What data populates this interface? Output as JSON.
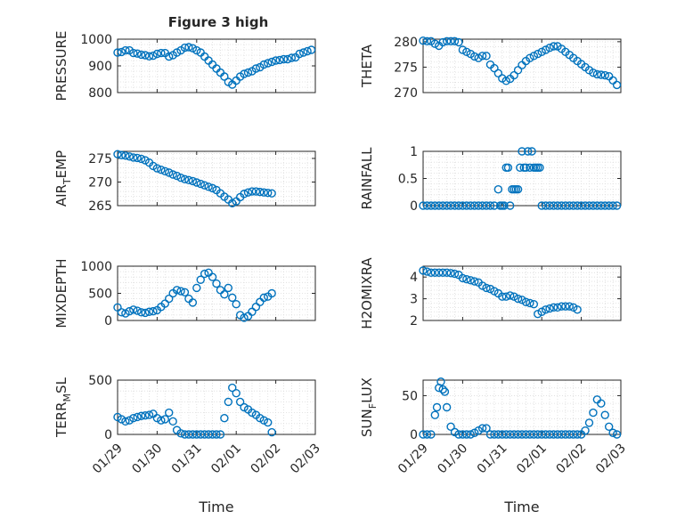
{
  "figure_title": "Figure 3 high",
  "colors": {
    "marker": "#0072BD",
    "grid": "#dcdcdc",
    "axis": "#262626"
  },
  "chart_data": [
    {
      "type": "scatter",
      "title": "Figure 3 high",
      "ylabel": "PRESSURE",
      "ylim": [
        800,
        1000
      ],
      "yticks": [
        800,
        900,
        1000
      ],
      "grid": true,
      "x": [
        29.0,
        29.1,
        29.2,
        29.3,
        29.4,
        29.5,
        29.6,
        29.7,
        29.8,
        29.9,
        30.0,
        30.1,
        30.2,
        30.3,
        30.4,
        30.5,
        30.6,
        30.7,
        30.8,
        30.9,
        31.0,
        31.1,
        31.2,
        31.3,
        31.4,
        31.5,
        31.6,
        31.7,
        31.8,
        31.9,
        32.0,
        32.1,
        32.2,
        32.3,
        32.4,
        32.5,
        32.6,
        32.7,
        32.8,
        32.9,
        33.0,
        33.1,
        33.2,
        33.3,
        33.4,
        33.5,
        33.6,
        33.7,
        33.8,
        33.9
      ],
      "y": [
        950,
        952,
        958,
        958,
        948,
        946,
        942,
        940,
        936,
        938,
        945,
        948,
        948,
        935,
        940,
        950,
        958,
        968,
        970,
        966,
        958,
        950,
        935,
        920,
        905,
        890,
        875,
        860,
        840,
        830,
        845,
        860,
        870,
        875,
        880,
        890,
        895,
        905,
        910,
        915,
        920,
        922,
        925,
        925,
        930,
        932,
        945,
        950,
        955,
        960
      ]
    },
    {
      "type": "scatter",
      "ylabel": "THETA",
      "ylim": [
        270,
        280.5
      ],
      "yticks": [
        270,
        275,
        280
      ],
      "grid": true,
      "x": [
        29.0,
        29.1,
        29.2,
        29.3,
        29.4,
        29.5,
        29.6,
        29.7,
        29.8,
        29.9,
        30.0,
        30.1,
        30.2,
        30.3,
        30.4,
        30.5,
        30.6,
        30.7,
        30.8,
        30.9,
        31.0,
        31.1,
        31.2,
        31.3,
        31.4,
        31.5,
        31.6,
        31.7,
        31.8,
        31.9,
        32.0,
        32.1,
        32.2,
        32.3,
        32.4,
        32.5,
        32.6,
        32.7,
        32.8,
        32.9,
        33.0,
        33.1,
        33.2,
        33.3,
        33.4,
        33.5,
        33.6,
        33.7,
        33.8,
        33.9
      ],
      "y": [
        280.2,
        280.1,
        280.1,
        279.6,
        279.2,
        279.9,
        280.1,
        280.1,
        280.1,
        279.9,
        278.4,
        278.0,
        277.6,
        277.1,
        276.8,
        277.2,
        277.2,
        275.5,
        274.8,
        273.8,
        272.8,
        272.3,
        272.7,
        273.4,
        274.4,
        275.4,
        276.2,
        276.8,
        277.2,
        277.6,
        278.0,
        278.4,
        278.8,
        279.1,
        279.1,
        278.6,
        278.0,
        277.4,
        276.8,
        276.2,
        275.6,
        275.0,
        274.4,
        273.9,
        273.6,
        273.5,
        273.4,
        273.2,
        272.4,
        271.5
      ]
    },
    {
      "type": "scatter",
      "ylabel_main": "AIR",
      "ylabel_sub": "T",
      "ylabel_end": "EMP",
      "ylim": [
        265,
        276.5
      ],
      "yticks": [
        265,
        270,
        275
      ],
      "grid": true,
      "x": [
        29.0,
        29.1,
        29.2,
        29.3,
        29.4,
        29.5,
        29.6,
        29.7,
        29.8,
        29.9,
        30.0,
        30.1,
        30.2,
        30.3,
        30.4,
        30.5,
        30.6,
        30.7,
        30.8,
        30.9,
        31.0,
        31.1,
        31.2,
        31.3,
        31.4,
        31.5,
        31.6,
        31.7,
        31.8,
        31.9,
        32.0,
        32.1,
        32.2,
        32.3,
        32.4,
        32.5,
        32.6,
        32.7,
        32.8,
        32.9
      ],
      "y": [
        275.9,
        275.7,
        275.6,
        275.4,
        275.2,
        275.1,
        274.9,
        274.6,
        274.1,
        273.4,
        272.9,
        272.6,
        272.3,
        272.0,
        271.6,
        271.3,
        270.9,
        270.6,
        270.4,
        270.2,
        269.9,
        269.6,
        269.3,
        269.0,
        268.7,
        268.3,
        267.6,
        266.9,
        266.3,
        265.5,
        265.9,
        266.8,
        267.5,
        267.8,
        268.0,
        268.0,
        267.9,
        267.8,
        267.7,
        267.6
      ]
    },
    {
      "type": "scatter",
      "ylabel": "RAINFALL",
      "ylim": [
        0,
        1
      ],
      "yticks": [
        0,
        0.5,
        1
      ],
      "grid": true,
      "x": [
        29.0,
        29.1,
        29.2,
        29.3,
        29.4,
        29.5,
        29.6,
        29.7,
        29.8,
        29.9,
        30.0,
        30.1,
        30.2,
        30.3,
        30.4,
        30.5,
        30.6,
        30.7,
        30.8,
        30.9,
        30.95,
        31.0,
        31.05,
        31.1,
        31.15,
        31.2,
        31.25,
        31.3,
        31.35,
        31.4,
        31.45,
        31.5,
        31.55,
        31.6,
        31.65,
        31.7,
        31.75,
        31.8,
        31.85,
        31.9,
        31.95,
        32.0,
        32.1,
        32.2,
        32.3,
        32.4,
        32.5,
        32.6,
        32.7,
        32.8,
        32.9,
        33.0,
        33.1,
        33.2,
        33.3,
        33.4,
        33.5,
        33.6,
        33.7,
        33.8,
        33.9
      ],
      "y": [
        0,
        0,
        0,
        0,
        0,
        0,
        0,
        0,
        0,
        0,
        0,
        0,
        0,
        0,
        0,
        0,
        0,
        0,
        0,
        0.3,
        0,
        0,
        0,
        0.7,
        0.7,
        0,
        0.3,
        0.3,
        0.3,
        0.3,
        0.7,
        1,
        0.7,
        0.7,
        1,
        0.7,
        1,
        0.7,
        0.7,
        0.7,
        0.7,
        0,
        0,
        0,
        0,
        0,
        0,
        0,
        0,
        0,
        0,
        0,
        0,
        0,
        0,
        0,
        0,
        0,
        0,
        0,
        0
      ]
    },
    {
      "type": "scatter",
      "ylabel": "MIXDEPTH",
      "ylim": [
        0,
        1000
      ],
      "yticks": [
        0,
        500,
        1000
      ],
      "grid": true,
      "x": [
        29.0,
        29.1,
        29.2,
        29.3,
        29.4,
        29.5,
        29.6,
        29.7,
        29.8,
        29.9,
        30.0,
        30.1,
        30.2,
        30.3,
        30.4,
        30.5,
        30.6,
        30.7,
        30.8,
        30.9,
        31.0,
        31.1,
        31.2,
        31.3,
        31.4,
        31.5,
        31.6,
        31.7,
        31.8,
        31.9,
        32.0,
        32.1,
        32.2,
        32.3,
        32.4,
        32.5,
        32.6,
        32.7,
        32.8,
        32.9
      ],
      "y": [
        240,
        150,
        130,
        170,
        200,
        180,
        150,
        140,
        160,
        170,
        190,
        250,
        310,
        400,
        500,
        560,
        540,
        520,
        400,
        330,
        600,
        750,
        860,
        880,
        800,
        680,
        560,
        480,
        600,
        420,
        300,
        100,
        50,
        80,
        160,
        250,
        340,
        420,
        440,
        500
      ]
    },
    {
      "type": "scatter",
      "ylabel": "H2OMIXRA",
      "ylim": [
        2,
        4.5
      ],
      "yticks": [
        2,
        3,
        4
      ],
      "grid": true,
      "x": [
        29.0,
        29.1,
        29.2,
        29.3,
        29.4,
        29.5,
        29.6,
        29.7,
        29.8,
        29.9,
        30.0,
        30.1,
        30.2,
        30.3,
        30.4,
        30.5,
        30.6,
        30.7,
        30.8,
        30.9,
        31.0,
        31.1,
        31.2,
        31.3,
        31.4,
        31.5,
        31.6,
        31.7,
        31.8,
        31.9,
        32.0,
        32.1,
        32.2,
        32.3,
        32.4,
        32.5,
        32.6,
        32.7,
        32.8,
        32.9
      ],
      "y": [
        4.3,
        4.25,
        4.2,
        4.2,
        4.2,
        4.2,
        4.2,
        4.18,
        4.15,
        4.1,
        3.95,
        3.9,
        3.85,
        3.8,
        3.75,
        3.6,
        3.5,
        3.45,
        3.35,
        3.25,
        3.1,
        3.1,
        3.15,
        3.1,
        3.0,
        2.95,
        2.85,
        2.8,
        2.75,
        2.3,
        2.4,
        2.5,
        2.55,
        2.6,
        2.6,
        2.65,
        2.65,
        2.65,
        2.6,
        2.5
      ]
    },
    {
      "type": "scatter",
      "ylabel_main": "TERR",
      "ylabel_sub": "M",
      "ylabel_end": "SL",
      "ylim": [
        0,
        500
      ],
      "yticks": [
        0,
        500
      ],
      "xlabel": "Time",
      "xticks": [
        "01/29",
        "01/30",
        "01/31",
        "02/01",
        "02/02",
        "02/03"
      ],
      "grid": true,
      "x": [
        29.0,
        29.1,
        29.2,
        29.3,
        29.4,
        29.5,
        29.6,
        29.7,
        29.8,
        29.9,
        30.0,
        30.1,
        30.2,
        30.3,
        30.4,
        30.5,
        30.6,
        30.7,
        30.8,
        30.9,
        31.0,
        31.1,
        31.2,
        31.3,
        31.4,
        31.5,
        31.6,
        31.7,
        31.8,
        31.9,
        32.0,
        32.1,
        32.2,
        32.3,
        32.4,
        32.5,
        32.6,
        32.7,
        32.8,
        32.9
      ],
      "y": [
        160,
        140,
        120,
        130,
        150,
        160,
        170,
        175,
        180,
        190,
        150,
        130,
        140,
        200,
        120,
        40,
        10,
        0,
        0,
        0,
        0,
        0,
        0,
        0,
        0,
        0,
        0,
        150,
        300,
        430,
        380,
        300,
        250,
        230,
        200,
        180,
        150,
        130,
        110,
        20
      ]
    },
    {
      "type": "scatter",
      "ylabel_main": "SUN",
      "ylabel_sub": "F",
      "ylabel_end": "LUX",
      "ylim": [
        0,
        70
      ],
      "yticks": [
        0,
        50
      ],
      "xlabel": "Time",
      "xticks": [
        "01/29",
        "01/30",
        "01/31",
        "02/01",
        "02/02",
        "02/03"
      ],
      "grid": true,
      "x": [
        29.0,
        29.1,
        29.2,
        29.3,
        29.35,
        29.4,
        29.45,
        29.5,
        29.55,
        29.6,
        29.7,
        29.8,
        29.9,
        30.0,
        30.1,
        30.2,
        30.3,
        30.4,
        30.5,
        30.6,
        30.7,
        30.8,
        30.9,
        31.0,
        31.1,
        31.2,
        31.3,
        31.4,
        31.5,
        31.6,
        31.7,
        31.8,
        31.9,
        32.0,
        32.1,
        32.2,
        32.3,
        32.4,
        32.5,
        32.6,
        32.7,
        32.8,
        32.9,
        33.0,
        33.1,
        33.2,
        33.3,
        33.4,
        33.5,
        33.6,
        33.7,
        33.8,
        33.9
      ],
      "y": [
        0,
        0,
        0,
        25,
        35,
        60,
        68,
        58,
        55,
        35,
        10,
        3,
        0,
        0,
        0,
        0,
        2,
        5,
        8,
        8,
        0,
        0,
        0,
        0,
        0,
        0,
        0,
        0,
        0,
        0,
        0,
        0,
        0,
        0,
        0,
        0,
        0,
        0,
        0,
        0,
        0,
        0,
        0,
        0,
        5,
        15,
        28,
        45,
        40,
        25,
        10,
        2,
        0
      ]
    }
  ]
}
